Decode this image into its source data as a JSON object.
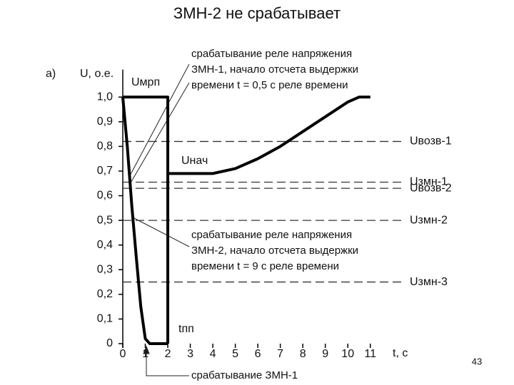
{
  "chart_data": {
    "type": "line",
    "title": "ЗМН-2 не срабатывает",
    "panel_label": "а)",
    "y_label": "U, о.е.",
    "x_label": "t, c",
    "xlim": [
      0,
      12.5
    ],
    "ylim": [
      0,
      1.1
    ],
    "xticks": [
      0,
      1,
      2,
      3,
      4,
      5,
      6,
      7,
      8,
      9,
      10,
      11
    ],
    "yticks": [
      0,
      {
        "value": 0.1,
        "label": "0,1"
      },
      {
        "value": 0.2,
        "label": "0,2"
      },
      {
        "value": 0.3,
        "label": "0,3"
      },
      {
        "value": 0.4,
        "label": "0,4"
      },
      {
        "value": 0.5,
        "label": "0,5"
      },
      {
        "value": 0.6,
        "label": "0,6"
      },
      {
        "value": 0.7,
        "label": "0,7"
      },
      {
        "value": 0.8,
        "label": "0,8"
      },
      {
        "value": 0.9,
        "label": "0,9"
      },
      {
        "value": 1,
        "label": "1,0"
      }
    ],
    "series": [
      {
        "color": "#000000",
        "x": [
          0,
          2,
          2
        ],
        "values": [
          1,
          1,
          0
        ]
      },
      {
        "color": "#000000",
        "x": [
          0,
          0.2,
          0.4,
          0.6,
          0.8,
          1.0,
          1.2,
          2.0
        ],
        "values": [
          1,
          0.8,
          0.56,
          0.35,
          0.15,
          0.02,
          0,
          0
        ]
      },
      {
        "color": "#000000",
        "x": [
          2,
          4,
          5,
          6,
          7,
          8,
          9,
          10,
          10.5,
          11
        ],
        "values": [
          0.69,
          0.69,
          0.71,
          0.75,
          0.8,
          0.86,
          0.92,
          0.98,
          1.0,
          1.0
        ]
      }
    ],
    "thresholds": [
      {
        "name": "Uвозв-1",
        "value": 0.82
      },
      {
        "name": "Uзмн-1",
        "value": 0.655
      },
      {
        "name": "Uвозв-2",
        "value": 0.63
      },
      {
        "name": "Uзмн-2",
        "value": 0.5
      },
      {
        "name": "Uзмн-3",
        "value": 0.25
      }
    ],
    "annotations": {
      "u_mrp": "Uмрп",
      "u_nach": "Uнач",
      "t_pp": "tпп",
      "zmn1_start": [
        "срабатывание реле напряжения",
        "ЗМН-1, начало отсчета выдержки",
        "времени t = 0,5 с реле времени"
      ],
      "zmn2_start": [
        "срабатывание реле напряжения",
        "ЗМН-2, начало отсчета выдержки",
        "времени t = 9 с реле времени"
      ],
      "zmn1_trip": "срабатывание ЗМН-1"
    },
    "page_number": "43"
  }
}
